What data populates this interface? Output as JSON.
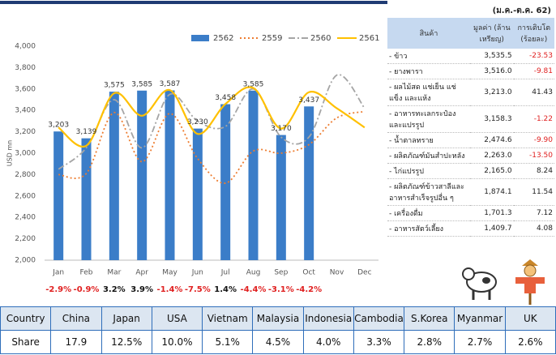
{
  "chart_data": {
    "type": "bar",
    "categories": [
      "Jan",
      "Feb",
      "Mar",
      "Apr",
      "May",
      "Jun",
      "Jul",
      "Aug",
      "Sep",
      "Oct",
      "Nov",
      "Dec"
    ],
    "y_label": "USD mn",
    "ylim": [
      2000,
      4000
    ],
    "yticks": [
      {
        "value": 2000,
        "label": "2,000"
      },
      {
        "value": 2200,
        "label": "2,200"
      },
      {
        "value": 2400,
        "label": "2,400"
      },
      {
        "value": 2600,
        "label": "2,600"
      },
      {
        "value": 2800,
        "label": "2,800"
      },
      {
        "value": 3000,
        "label": "3,000"
      },
      {
        "value": 3200,
        "label": "3,200"
      },
      {
        "value": 3400,
        "label": "3,400"
      },
      {
        "value": 3600,
        "label": "3,600"
      },
      {
        "value": 3800,
        "label": "3,800"
      },
      {
        "value": 4000,
        "label": "4,000"
      }
    ],
    "grid": false,
    "legend": "top",
    "series": [
      {
        "name": "2562",
        "type": "bar",
        "color": "#3b7dc8",
        "values": [
          3203,
          3139,
          3575,
          3585,
          3587,
          3230,
          3458,
          3585,
          3170,
          3437,
          null,
          null
        ],
        "value_labels": [
          "3,203",
          "3,139",
          "3,575",
          "3,585",
          "3,587",
          "3,230",
          "3,458",
          "3,585",
          "3,170",
          "3,437",
          null,
          null
        ]
      },
      {
        "name": "2559",
        "type": "line",
        "style": "dotted",
        "color": "#ed7d31",
        "values": [
          2800,
          2810,
          3380,
          2920,
          3370,
          2950,
          2720,
          3020,
          3000,
          3080,
          3330,
          3390
        ]
      },
      {
        "name": "2560",
        "type": "line",
        "style": "dashdot",
        "color": "#a5a5a5",
        "values": [
          2850,
          3050,
          3500,
          3050,
          3550,
          3300,
          3250,
          3600,
          3150,
          3150,
          3730,
          3420
        ]
      },
      {
        "name": "2561",
        "type": "line",
        "style": "solid",
        "color": "#ffc000",
        "values": [
          3240,
          3070,
          3560,
          3350,
          3590,
          3180,
          3460,
          3610,
          3230,
          3570,
          3420,
          3240
        ]
      }
    ],
    "growth_labels": [
      "-2.9%",
      "-0.9%",
      "3.2%",
      "3.9%",
      "-1.4%",
      "-7.5%",
      "1.4%",
      "-4.4%",
      "-3.1%",
      "-4.2%"
    ],
    "negative_color": "#e02020"
  },
  "side_table": {
    "title": "(ม.ค.-ต.ค. 62)",
    "columns": [
      "สินค้า",
      "มูลค่า (ล้านเหรียญ)",
      "การเติบโต (ร้อยละ)"
    ],
    "rows": [
      [
        "- ข้าว",
        "3,535.5",
        "-23.53"
      ],
      [
        "- ยางพารา",
        "3,516.0",
        "-9.81"
      ],
      [
        "- ผลไม้สด แช่เย็น แช่แข็ง และแห้ง",
        "3,213.0",
        "41.43"
      ],
      [
        "- อาหารทะเลกระป๋อง และแปรรูป",
        "3,158.3",
        "-1.22"
      ],
      [
        "- น้ำตาลทราย",
        "2,474.6",
        "-9.90"
      ],
      [
        "- ผลิตภัณฑ์มันสำปะหลัง",
        "2,263.0",
        "-13.50"
      ],
      [
        "- ไก่แปรรูป",
        "2,165.0",
        "8.24"
      ],
      [
        "- ผลิตภัณฑ์ข้าวสาลีและ อาหารสำเร็จรูปอื่น ๆ",
        "1,874.1",
        "11.54"
      ],
      [
        "- เครื่องดื่ม",
        "1,701.3",
        "7.12"
      ],
      [
        "- อาหารสัตว์เลี้ยง",
        "1,409.7",
        "4.08"
      ]
    ],
    "negative_color": "#e02020"
  },
  "bottom_table": {
    "header": [
      "Country",
      "China",
      "Japan",
      "USA",
      "Vietnam",
      "Malaysia",
      "Indonesia",
      "Cambodia",
      "S.Korea",
      "Myanmar",
      "UK"
    ],
    "row": [
      "Share",
      "17.9",
      "12.5%",
      "10.0%",
      "5.1%",
      "4.5%",
      "4.0%",
      "3.3%",
      "2.8%",
      "2.7%",
      "2.6%"
    ]
  }
}
